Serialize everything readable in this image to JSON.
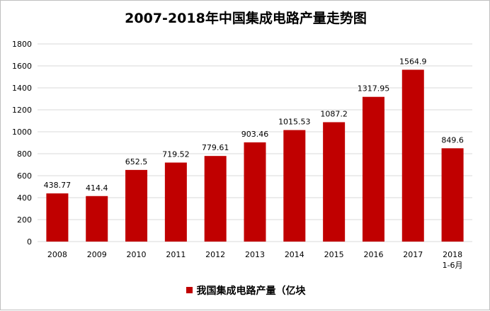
{
  "chart_data": {
    "type": "bar",
    "title": "2007-2018年中国集成电路产量走势图",
    "categories": [
      [
        "2008"
      ],
      [
        "2009"
      ],
      [
        "2010"
      ],
      [
        "2011"
      ],
      [
        "2012"
      ],
      [
        "2013"
      ],
      [
        "2014"
      ],
      [
        "2015"
      ],
      [
        "2016"
      ],
      [
        "2017"
      ],
      [
        "2018",
        "1-6月"
      ]
    ],
    "series": [
      {
        "name": "我国集成电路产量（亿块",
        "values": [
          438.77,
          414.4,
          652.5,
          719.52,
          779.61,
          903.46,
          1015.53,
          1087.2,
          1317.95,
          1564.9,
          849.6
        ],
        "labels": [
          "438.77",
          "414.4",
          "652.5",
          "719.52",
          "779.61",
          "903.46",
          "1015.53",
          "1087.2",
          "1317.95",
          "1564.9",
          "849.6"
        ],
        "color": "#c00000"
      }
    ],
    "ylim": [
      0,
      1800
    ],
    "yticks": [
      0,
      200,
      400,
      600,
      800,
      1000,
      1200,
      1400,
      1600,
      1800
    ],
    "grid": true,
    "legend": "bottom",
    "xlabel": "",
    "ylabel": ""
  }
}
